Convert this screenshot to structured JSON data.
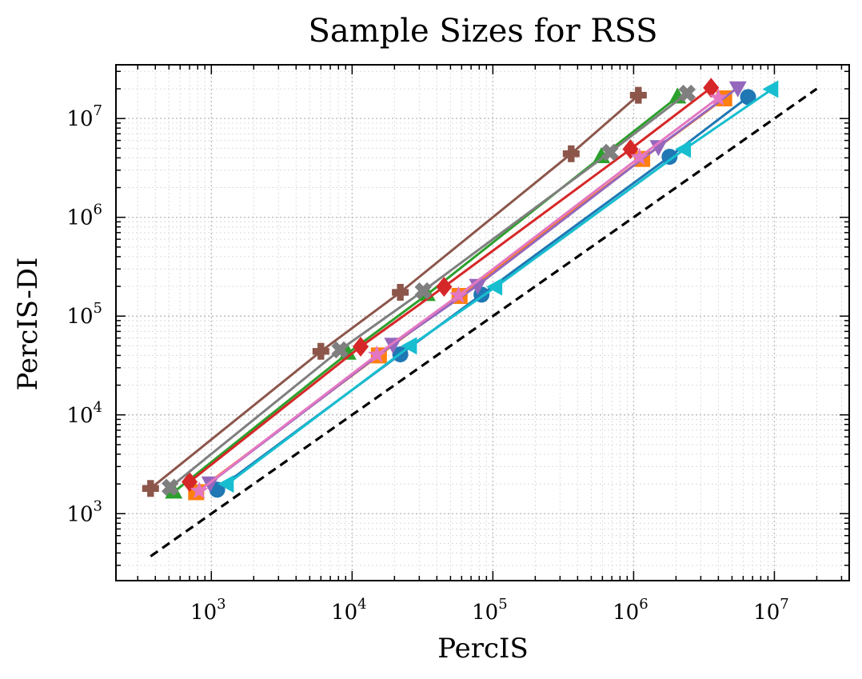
{
  "chart_data": {
    "type": "line",
    "title": "Sample Sizes for RSS",
    "xlabel": "PercIS",
    "ylabel": "PercIS-DI",
    "x_scale": "log",
    "y_scale": "log",
    "xlim": [
      210,
      34000000
    ],
    "ylim": [
      210,
      35000000
    ],
    "x_ticks": [
      {
        "base": "10",
        "exp": "3",
        "value": 1000
      },
      {
        "base": "10",
        "exp": "4",
        "value": 10000
      },
      {
        "base": "10",
        "exp": "5",
        "value": 100000
      },
      {
        "base": "10",
        "exp": "6",
        "value": 1000000
      },
      {
        "base": "10",
        "exp": "7",
        "value": 10000000
      }
    ],
    "y_ticks": [
      {
        "base": "10",
        "exp": "3",
        "value": 1000
      },
      {
        "base": "10",
        "exp": "4",
        "value": 10000
      },
      {
        "base": "10",
        "exp": "5",
        "value": 100000
      },
      {
        "base": "10",
        "exp": "6",
        "value": 1000000
      },
      {
        "base": "10",
        "exp": "7",
        "value": 10000000
      }
    ],
    "grid": true,
    "reference_line": {
      "style": "dashed",
      "color": "#000000",
      "x": [
        370,
        20000000
      ],
      "y": [
        370,
        20000000
      ]
    },
    "series": [
      {
        "color": "#1f77b4",
        "marker": "circle",
        "x": [
          1100,
          22000,
          83000,
          1800000,
          6500000
        ],
        "y": [
          1750,
          41000,
          165000,
          4100000,
          16500000
        ]
      },
      {
        "color": "#ff7f0e",
        "marker": "square",
        "x": [
          780,
          15500,
          58000,
          1150000,
          4400000
        ],
        "y": [
          1650,
          40000,
          160000,
          3900000,
          16000000
        ]
      },
      {
        "color": "#2ca02c",
        "marker": "triangle-up",
        "x": [
          540,
          9300,
          34000,
          590000,
          2050000
        ],
        "y": [
          1650,
          42000,
          165000,
          4100000,
          16500000
        ]
      },
      {
        "color": "#d62728",
        "marker": "diamond",
        "x": [
          700,
          11500,
          45000,
          950000,
          3550000
        ],
        "y": [
          2100,
          49000,
          198000,
          4900000,
          20500000
        ]
      },
      {
        "color": "#9467bd",
        "marker": "triangle-down",
        "x": [
          980,
          19500,
          78000,
          1500000,
          5500000
        ],
        "y": [
          2050,
          52000,
          205000,
          5200000,
          20500000
        ]
      },
      {
        "color": "#8c564b",
        "marker": "plus-filled",
        "x": [
          370,
          6000,
          22000,
          360000,
          1080000
        ],
        "y": [
          1800,
          44000,
          174000,
          4400000,
          17200000
        ]
      },
      {
        "color": "#e377c2",
        "marker": "star",
        "x": [
          820,
          15000,
          57000,
          1100000,
          4000000
        ],
        "y": [
          1700,
          40500,
          162000,
          4050000,
          16200000
        ]
      },
      {
        "color": "#7f7f7f",
        "marker": "x-filled",
        "x": [
          510,
          8200,
          32000,
          680000,
          2400000
        ],
        "y": [
          1850,
          45500,
          180000,
          4550000,
          18000000
        ]
      },
      {
        "color": "#17becf",
        "marker": "triangle-left",
        "x": [
          1300,
          26000,
          105000,
          2300000,
          9600000
        ],
        "y": [
          2000,
          50000,
          198000,
          4900000,
          19800000
        ]
      }
    ]
  }
}
